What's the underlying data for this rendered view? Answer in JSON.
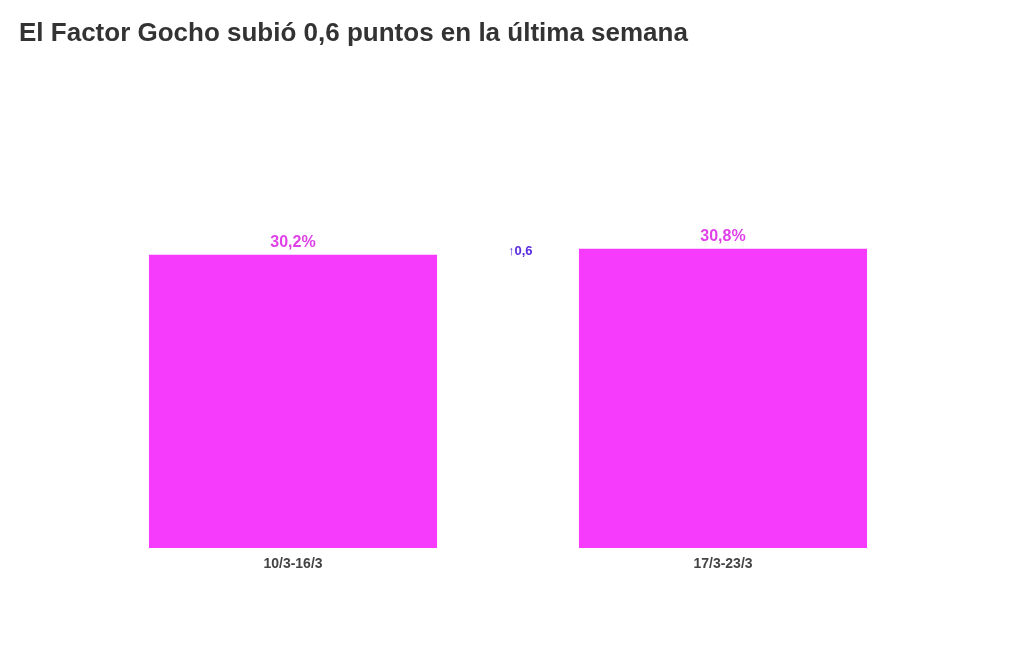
{
  "chart_data": {
    "type": "bar",
    "title": "El Factor Gocho subió 0,6 puntos en la última semana",
    "categories": [
      "10/3-16/3",
      "17/3-23/3"
    ],
    "values": [
      30.2,
      30.8
    ],
    "value_labels": [
      "30,2%",
      "30,8%"
    ],
    "color": "#f73bfc",
    "annotations": [
      "↑0,6"
    ]
  }
}
